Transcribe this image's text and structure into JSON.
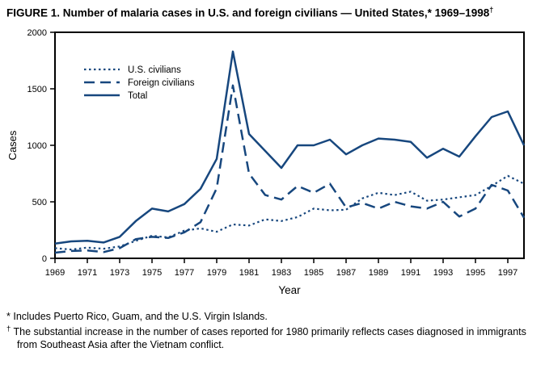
{
  "title": {
    "text": "FIGURE 1. Number of malaria cases in U.S. and foreign civilians — United States,* 1969–1998",
    "superscript": "†"
  },
  "chart_data": {
    "type": "line",
    "title": "Number of malaria cases in U.S. and foreign civilians — United States, 1969–1998",
    "xlabel": "Year",
    "ylabel": "Cases",
    "ylim": [
      0,
      2000
    ],
    "y_ticks": [
      0,
      500,
      1000,
      1500,
      2000
    ],
    "x_tick_labels": [
      1969,
      1971,
      1973,
      1975,
      1977,
      1979,
      1981,
      1983,
      1985,
      1987,
      1989,
      1991,
      1993,
      1995,
      1997
    ],
    "legend_position": "top-left-inside",
    "line_color": "#17477E",
    "axis_color": "#000000",
    "x": [
      1969,
      1970,
      1971,
      1972,
      1973,
      1974,
      1975,
      1976,
      1977,
      1978,
      1979,
      1980,
      1981,
      1982,
      1983,
      1984,
      1985,
      1986,
      1987,
      1988,
      1989,
      1990,
      1991,
      1992,
      1993,
      1994,
      1995,
      1996,
      1997,
      1998
    ],
    "series": [
      {
        "name": "U.S. civilians",
        "style": "dotted",
        "values": [
          90,
          78,
          95,
          85,
          105,
          155,
          200,
          185,
          245,
          265,
          235,
          300,
          290,
          345,
          330,
          365,
          440,
          425,
          430,
          530,
          580,
          560,
          590,
          510,
          520,
          540,
          560,
          640,
          730,
          660
        ]
      },
      {
        "name": "Foreign civilians",
        "style": "dashed",
        "values": [
          50,
          65,
          70,
          55,
          90,
          170,
          190,
          180,
          230,
          320,
          620,
          1530,
          750,
          560,
          520,
          640,
          580,
          660,
          450,
          490,
          440,
          500,
          460,
          440,
          500,
          370,
          440,
          650,
          600,
          360
        ]
      },
      {
        "name": "Total",
        "style": "solid",
        "values": [
          130,
          150,
          155,
          140,
          190,
          330,
          440,
          415,
          480,
          615,
          880,
          1830,
          1100,
          950,
          800,
          1000,
          1000,
          1050,
          920,
          1000,
          1060,
          1050,
          1030,
          890,
          970,
          900,
          1080,
          1250,
          1300,
          1000
        ]
      }
    ]
  },
  "footnotes": [
    {
      "marker": "*",
      "text": "Includes Puerto Rico, Guam, and the U.S. Virgin Islands."
    },
    {
      "marker": "†",
      "text": "The substantial increase in the number of cases reported for 1980 primarily reflects cases diagnosed in immigrants from Southeast Asia after the Vietnam conflict."
    }
  ]
}
